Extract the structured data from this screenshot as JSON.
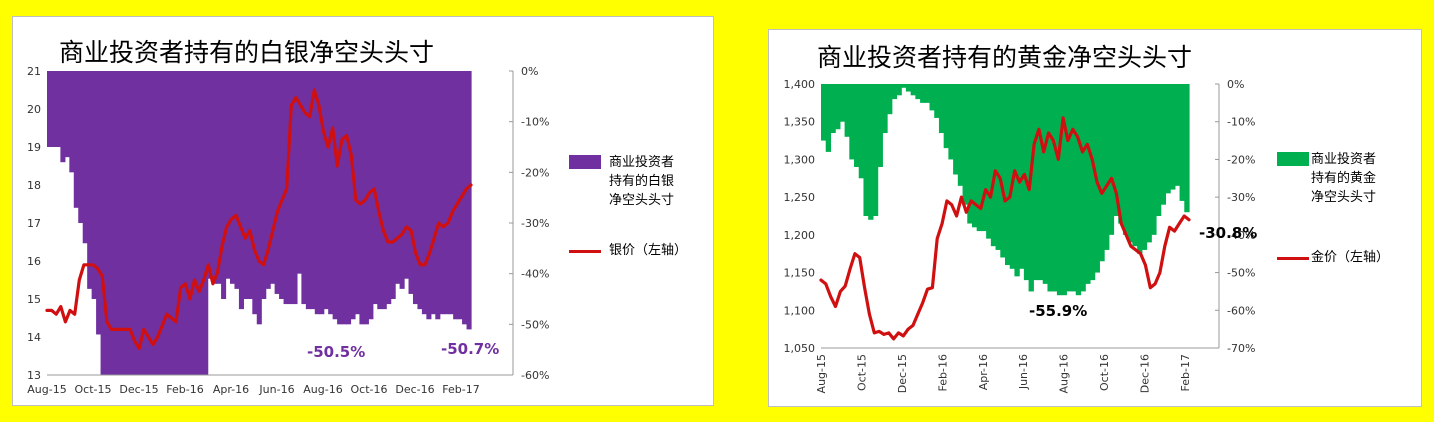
{
  "colors": {
    "background": "#ffff00",
    "silver_fill": "#7030a0",
    "gold_fill": "#00b050",
    "price_line": "#d01010"
  },
  "chart_data": [
    {
      "type": "bar+line",
      "title": "商业投资者持有的白银净空头头寸",
      "x_ticks": [
        "Aug-15",
        "Oct-15",
        "Dec-15",
        "Feb-16",
        "Apr-16",
        "Jun-16",
        "Aug-16",
        "Oct-16",
        "Dec-16",
        "Feb-17"
      ],
      "y_left_ticks": [
        "13",
        "14",
        "15",
        "16",
        "17",
        "18",
        "19",
        "20",
        "21"
      ],
      "y_left_range": [
        13,
        21
      ],
      "y_right_ticks": [
        "0%",
        "-10%",
        "-20%",
        "-30%",
        "-40%",
        "-50%",
        "-60%"
      ],
      "y_right_range": [
        -60,
        0
      ],
      "series": [
        {
          "name": "商业投资者持有的白银净空头头寸",
          "type": "bar",
          "axis": "right",
          "values": [
            -15,
            -15,
            -15,
            -18,
            -17,
            -20,
            -27,
            -30,
            -34,
            -43,
            -45,
            -52,
            -60,
            -60,
            -60,
            -60,
            -60,
            -60,
            -60,
            -60,
            -60,
            -60,
            -60,
            -60,
            -60,
            -60,
            -60,
            -60,
            -60,
            -60,
            -60,
            -60,
            -60,
            -60,
            -60,
            -60,
            -41,
            -42,
            -42,
            -45,
            -41,
            -42,
            -43,
            -47,
            -45,
            -45,
            -48,
            -50,
            -45,
            -43,
            -42,
            -44,
            -45,
            -46,
            -46,
            -46,
            -40,
            -46,
            -47,
            -47,
            -48,
            -48,
            -47,
            -48,
            -49,
            -50,
            -50,
            -50,
            -49,
            -48,
            -50,
            -50,
            -49,
            -46,
            -47,
            -47,
            -46,
            -45,
            -42,
            -43,
            -41,
            -44,
            -46,
            -47,
            -48,
            -49,
            -48,
            -49,
            -48,
            -48,
            -48,
            -49,
            -49,
            -50,
            -51
          ],
          "legend": [
            "商业投资者",
            "持有的白银",
            "净空头头寸"
          ]
        },
        {
          "name": "银价（左轴）",
          "type": "line",
          "axis": "left",
          "values": [
            14.7,
            14.7,
            14.6,
            14.8,
            14.4,
            14.7,
            14.6,
            15.5,
            15.9,
            15.9,
            15.9,
            15.8,
            15.6,
            14.4,
            14.2,
            14.2,
            14.2,
            14.2,
            14.2,
            13.9,
            13.7,
            14.2,
            14.0,
            13.8,
            14.0,
            14.3,
            14.6,
            14.5,
            14.4,
            15.3,
            15.4,
            15.0,
            15.5,
            15.2,
            15.5,
            15.9,
            15.4,
            15.7,
            16.4,
            16.9,
            17.1,
            17.2,
            16.9,
            16.6,
            16.8,
            16.3,
            16.0,
            15.9,
            16.3,
            16.8,
            17.3,
            17.6,
            17.9,
            20.1,
            20.3,
            20.1,
            19.9,
            19.8,
            20.5,
            20.1,
            19.4,
            19.0,
            19.5,
            18.5,
            19.2,
            19.3,
            18.8,
            17.6,
            17.5,
            17.6,
            17.8,
            17.9,
            17.3,
            16.8,
            16.5,
            16.5,
            16.6,
            16.7,
            16.9,
            16.8,
            16.2,
            15.9,
            15.9,
            16.2,
            16.6,
            17.0,
            16.9,
            17.0,
            17.3,
            17.5,
            17.7,
            17.9,
            18.0
          ]
        }
      ],
      "annotations": [
        "-50.5%",
        "-50.7%"
      ]
    },
    {
      "type": "bar+line",
      "title": "商业投资者持有的黄金净空头头寸",
      "x_ticks": [
        "Aug-15",
        "Oct-15",
        "Dec-15",
        "Feb-16",
        "Apr-16",
        "Jun-16",
        "Aug-16",
        "Oct-16",
        "Dec-16",
        "Feb-17"
      ],
      "y_left_ticks": [
        "1,050",
        "1,100",
        "1,150",
        "1,200",
        "1,250",
        "1,300",
        "1,350",
        "1,400"
      ],
      "y_left_range": [
        1050,
        1400
      ],
      "y_right_ticks": [
        "0%",
        "-10%",
        "-20%",
        "-30%",
        "-40%",
        "-50%",
        "-60%",
        "-70%"
      ],
      "y_right_range": [
        -70,
        0
      ],
      "series": [
        {
          "name": "商业投资者持有的黄金净空头头寸",
          "type": "bar",
          "axis": "right",
          "values": [
            -15,
            -18,
            -13,
            -12,
            -10,
            -14,
            -20,
            -22,
            -25,
            -35,
            -36,
            -35,
            -22,
            -13,
            -8,
            -4,
            -3,
            -1,
            -2,
            -3,
            -4,
            -5,
            -5,
            -7,
            -9,
            -13,
            -17,
            -20,
            -24,
            -27,
            -32,
            -37,
            -38,
            -39,
            -39,
            -41,
            -43,
            -44,
            -46,
            -48,
            -49,
            -51,
            -49,
            -52,
            -55,
            -52,
            -52,
            -53,
            -55,
            -55,
            -56,
            -56,
            -55,
            -55,
            -56,
            -55,
            -53,
            -52,
            -50,
            -47,
            -44,
            -40,
            -35,
            -37,
            -40,
            -42,
            -43,
            -45,
            -44,
            -42,
            -40,
            -35,
            -32,
            -29,
            -28,
            -27,
            -31,
            -34
          ],
          "legend": [
            "商业投资者",
            "持有的黄金",
            "净空头头寸"
          ]
        },
        {
          "name": "金价（左轴）",
          "type": "line",
          "axis": "left",
          "values": [
            1140,
            1135,
            1118,
            1105,
            1125,
            1132,
            1155,
            1175,
            1170,
            1130,
            1095,
            1070,
            1072,
            1068,
            1070,
            1062,
            1070,
            1066,
            1075,
            1080,
            1095,
            1110,
            1128,
            1130,
            1195,
            1215,
            1245,
            1240,
            1225,
            1250,
            1230,
            1245,
            1240,
            1235,
            1260,
            1250,
            1285,
            1275,
            1245,
            1250,
            1285,
            1270,
            1280,
            1260,
            1320,
            1340,
            1310,
            1335,
            1325,
            1300,
            1355,
            1325,
            1340,
            1330,
            1310,
            1320,
            1300,
            1270,
            1255,
            1265,
            1275,
            1255,
            1215,
            1200,
            1185,
            1180,
            1175,
            1160,
            1130,
            1135,
            1150,
            1185,
            1210,
            1205,
            1215,
            1225,
            1220
          ]
        }
      ],
      "annotations": [
        "-55.9%",
        "-30.8%"
      ]
    }
  ]
}
